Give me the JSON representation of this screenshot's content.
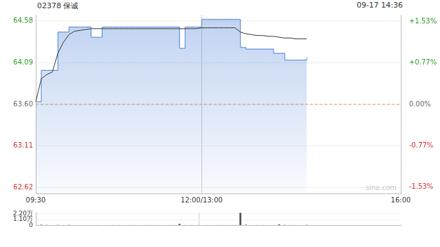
{
  "chart_data": [
    {
      "type": "line",
      "title": "02378 保诚",
      "timestamp": "09-17 14:36",
      "watermark": "sina.com",
      "categories": [
        "09:30",
        null,
        null,
        null,
        null,
        null,
        null,
        null,
        null,
        null,
        null,
        null,
        null,
        null,
        null,
        null,
        null,
        null,
        null,
        null,
        null,
        null,
        null,
        null,
        null,
        null,
        null,
        null,
        null,
        null,
        "12:00/13:00",
        null,
        null,
        null,
        null,
        null,
        null,
        null,
        null,
        null,
        null,
        null,
        null,
        null,
        null,
        null,
        null,
        null,
        null,
        null,
        null,
        null,
        null,
        null,
        null,
        null,
        null,
        null,
        null,
        null,
        null,
        null,
        null,
        null,
        null,
        null,
        "16:00"
      ],
      "prev_close": 63.6,
      "ylim": [
        62.55,
        64.65
      ],
      "yticks": [
        62.62,
        63.11,
        {
          "value": 63.6,
          "label": "63.60"
        },
        64.09,
        64.58
      ],
      "y2lim": [
        -1.65,
        1.65
      ],
      "y2ticks": [
        {
          "value": -1.53,
          "label": "-1.53%"
        },
        {
          "value": -0.77,
          "label": "-0.77%"
        },
        {
          "value": 0,
          "label": "0.00%"
        },
        {
          "value": 0.77,
          "label": "+0.77%"
        },
        {
          "value": 1.53,
          "label": "+1.53%"
        }
      ],
      "grid": true,
      "series": [
        {
          "type": "area",
          "color": "#4a7fd6",
          "line_style": "stepped",
          "values": [
            63.63,
            64.0,
            64.0,
            64.0,
            64.45,
            64.45,
            64.51,
            64.51,
            64.51,
            64.51,
            64.39,
            64.39,
            64.51,
            64.51,
            64.51,
            64.51,
            64.51,
            64.51,
            64.51,
            64.51,
            64.51,
            64.51,
            64.51,
            64.51,
            64.51,
            64.51,
            64.26,
            64.51,
            64.51,
            64.51,
            64.6,
            64.6,
            64.6,
            64.6,
            64.6,
            64.6,
            64.6,
            64.27,
            64.25,
            64.25,
            64.25,
            64.25,
            64.25,
            64.2,
            64.2,
            64.12,
            64.12,
            64.12,
            64.12,
            64.15,
            null,
            null,
            null,
            null,
            null,
            null,
            null,
            null,
            null,
            null,
            null,
            null,
            null,
            null,
            null,
            null,
            null
          ]
        },
        {
          "type": "line",
          "color": "#333333",
          "line_style": "solid",
          "values": [
            63.63,
            63.9,
            63.95,
            63.98,
            64.2,
            64.33,
            64.42,
            64.46,
            64.47,
            64.48,
            64.49,
            64.49,
            64.49,
            64.49,
            64.49,
            64.49,
            64.49,
            64.49,
            64.49,
            64.49,
            64.49,
            64.49,
            64.49,
            64.49,
            64.49,
            64.49,
            64.49,
            64.49,
            64.49,
            64.49,
            64.5,
            64.5,
            64.5,
            64.5,
            64.5,
            64.5,
            64.5,
            64.45,
            64.43,
            64.42,
            64.41,
            64.41,
            64.4,
            64.4,
            64.39,
            64.38,
            64.38,
            64.37,
            64.37,
            64.37,
            null,
            null,
            null,
            null,
            null,
            null,
            null,
            null,
            null,
            null,
            null,
            null,
            null,
            null,
            null,
            null,
            null
          ]
        }
      ]
    },
    {
      "type": "bar",
      "categories": [
        "09:30",
        null,
        null,
        null,
        null,
        null,
        null,
        null,
        null,
        null,
        null,
        null,
        null,
        null,
        null,
        null,
        null,
        null,
        null,
        null,
        null,
        null,
        null,
        null,
        null,
        null,
        null,
        null,
        null,
        null,
        "12:00/13:00",
        null,
        null,
        null,
        null,
        null,
        null,
        null,
        null,
        null,
        null,
        null,
        null,
        null,
        null,
        null,
        null,
        null,
        null,
        null,
        null,
        null,
        null,
        null,
        null,
        null,
        null,
        null,
        null,
        null,
        null,
        null,
        null,
        null,
        null,
        null,
        "16:00"
      ],
      "values": [
        0.02,
        0.15,
        0.1,
        0.08,
        0.12,
        0.06,
        0.1,
        0.05,
        0.08,
        0.04,
        0.06,
        0.05,
        0.07,
        0.04,
        0.05,
        0.03,
        0.05,
        0.04,
        0.03,
        0.04,
        0.05,
        0.03,
        0.04,
        0.05,
        0.03,
        0.04,
        0.3,
        0.05,
        0.04,
        0.06,
        0.08,
        0.05,
        0.04,
        0.05,
        0.03,
        0.06,
        0.05,
        2.4,
        0.15,
        0.08,
        0.06,
        0.05,
        0.07,
        0.05,
        0.2,
        0.12,
        0.06,
        0.05,
        0.04,
        0.1,
        null,
        null,
        null,
        null,
        null,
        null,
        null,
        null,
        null,
        null,
        null,
        null,
        null,
        null,
        null,
        null,
        null
      ],
      "color": "#555555",
      "ylim": [
        0,
        2.5
      ],
      "yticks": [
        0,
        {
          "value": 1.1,
          "label": "1.10万"
        },
        {
          "value": 2.2,
          "label": "2.20万"
        }
      ],
      "tick_labels": "y",
      "grid": true
    }
  ]
}
